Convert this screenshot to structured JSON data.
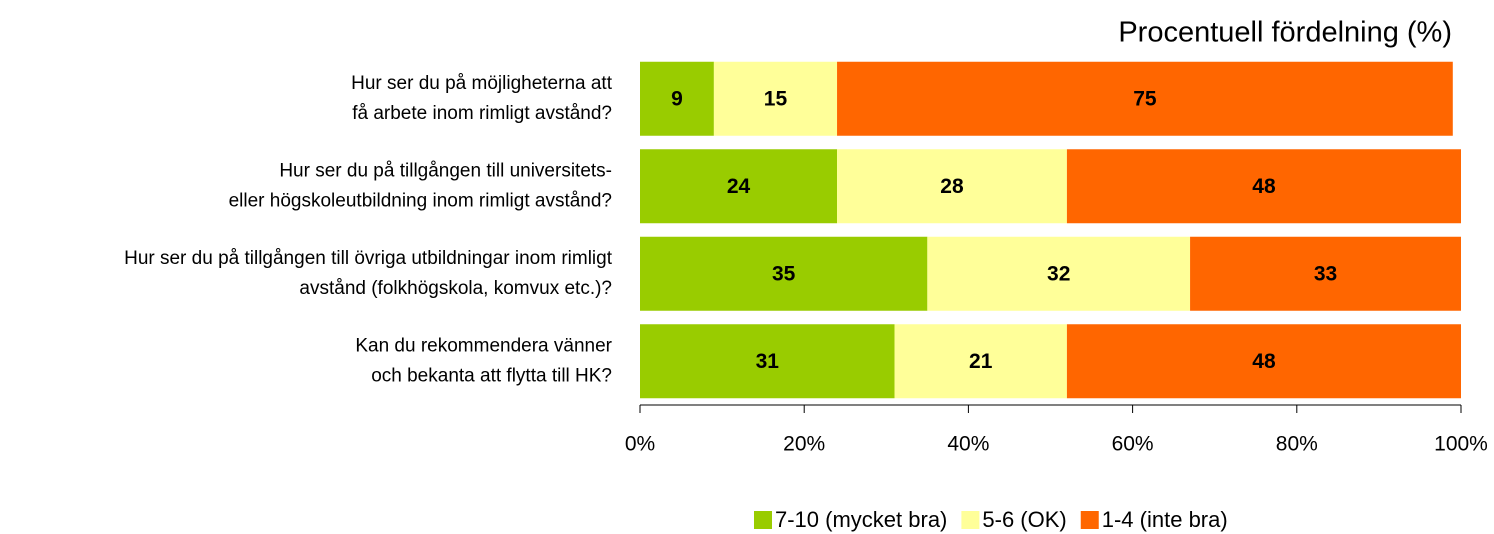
{
  "chart_data": {
    "type": "stacked-bar-horizontal",
    "title": "Procentuell fördelning (%)",
    "categories": [
      [
        "Hur ser du på möjligheterna att",
        "få arbete inom rimligt avstånd?"
      ],
      [
        "Hur ser du på tillgången till universitets-",
        "eller högskoleutbildning inom rimligt avstånd?"
      ],
      [
        "Hur ser du på tillgången till övriga utbildningar inom rimligt",
        "avstånd (folkhögskola, komvux etc.)?"
      ],
      [
        "Kan du rekommendera vänner",
        "och bekanta att flytta till HK?"
      ]
    ],
    "series": [
      {
        "name": "7-10 (mycket bra)",
        "color": "#99cc00",
        "values": [
          9,
          24,
          35,
          31
        ]
      },
      {
        "name": "5-6 (OK)",
        "color": "#ffff99",
        "values": [
          15,
          28,
          32,
          21
        ]
      },
      {
        "name": "1-4 (inte bra)",
        "color": "#ff6600",
        "values": [
          75,
          48,
          33,
          48
        ]
      }
    ],
    "xlim": [
      0,
      100
    ],
    "xticks": [
      {
        "value": 0,
        "label": "0%"
      },
      {
        "value": 20,
        "label": "20%"
      },
      {
        "value": 40,
        "label": "40%"
      },
      {
        "value": 60,
        "label": "60%"
      },
      {
        "value": 80,
        "label": "80%"
      },
      {
        "value": 100,
        "label": "100%"
      }
    ],
    "legend": "bottom"
  }
}
